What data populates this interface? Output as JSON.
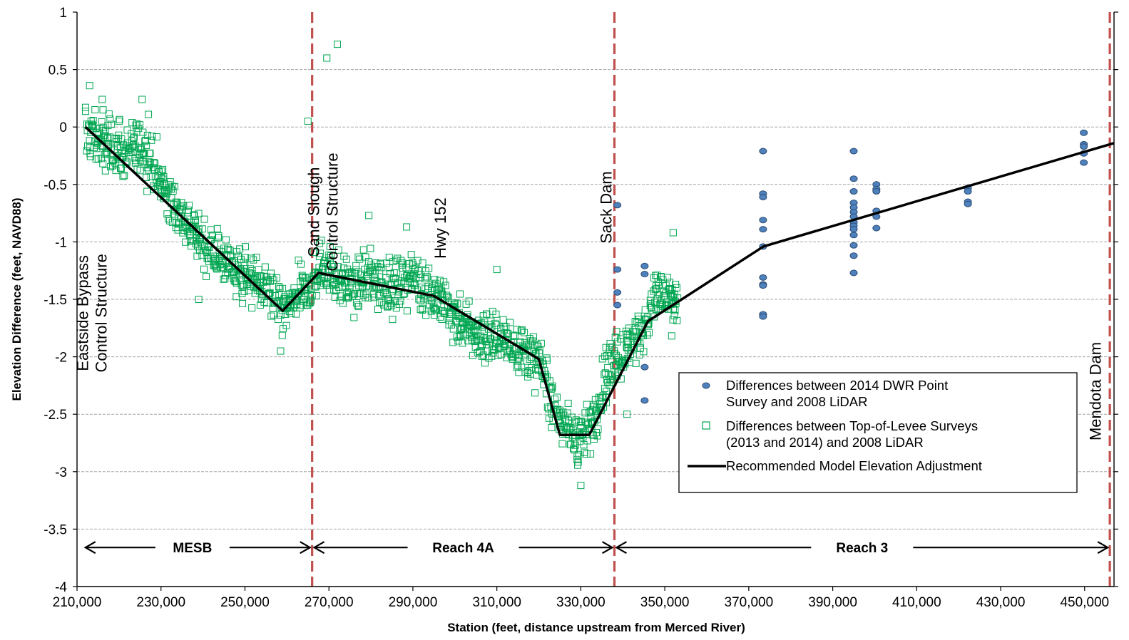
{
  "chart_data": {
    "type": "scatter",
    "xlabel": "Station (feet, distance upstream from Merced River)",
    "ylabel": "Elevation Difference (feet, NAVD88)",
    "xlim": [
      210000,
      457000
    ],
    "ylim": [
      -4,
      1
    ],
    "x_ticks": [
      210000,
      230000,
      250000,
      270000,
      290000,
      310000,
      330000,
      350000,
      370000,
      390000,
      410000,
      430000,
      450000
    ],
    "x_tick_labels": [
      "210,000",
      "230,000",
      "250,000",
      "270,000",
      "290,000",
      "310,000",
      "330,000",
      "350,000",
      "370,000",
      "390,000",
      "410,000",
      "430,000",
      "450,000"
    ],
    "y_ticks": [
      1,
      0.5,
      0,
      -0.5,
      -1,
      -1.5,
      -2,
      -2.5,
      -3,
      -3.5,
      -4
    ],
    "y_tick_labels": [
      "1",
      "0.5",
      "0",
      "-0.5",
      "-1",
      "-1.5",
      "-2",
      "-2.5",
      "-3",
      "-3.5",
      "-4"
    ],
    "grid": "horizontal",
    "legend_placement": "lower-right",
    "colors": {
      "levee": "#00a651",
      "dwr": "#4f81bd",
      "dwr_edge": "#2c4d75",
      "adjustment": "#000000",
      "boundary": "#c0504d",
      "grid": "#a6a6a6"
    },
    "legend": {
      "dwr_line1": "Differences between 2014 DWR Point",
      "dwr_line2": "Survey and 2008 LiDAR",
      "levee_line1": "Differences between Top-of-Levee Surveys",
      "levee_line2": "(2013 and 2014) and 2008 LiDAR",
      "adjustment": "Recommended Model Elevation Adjustment"
    },
    "boundaries": [
      266000,
      338000,
      456000
    ],
    "vertical_labels": [
      {
        "lines": [
          "Eastside Bypass",
          "Control Structure"
        ],
        "x": 213500,
        "y": -1.62
      },
      {
        "lines": [
          "Sand Slough",
          "Control Structure"
        ],
        "x": 268500,
        "y": -0.74
      },
      {
        "lines": [
          "Hwy 152"
        ],
        "x": 296500,
        "y": -0.88
      },
      {
        "lines": [
          "Sack Dam"
        ],
        "x": 336000,
        "y": -0.7
      },
      {
        "lines": [
          "Mendota Dam"
        ],
        "x": 452500,
        "y": -2.3
      }
    ],
    "reaches": [
      {
        "label": "MESB",
        "from": 212000,
        "to": 265500,
        "label_x": 237500
      },
      {
        "label": "Reach 4A",
        "from": 266500,
        "to": 337500,
        "label_x": 302000
      },
      {
        "label": "Reach 3",
        "from": 338500,
        "to": 455500,
        "label_x": 397000
      }
    ],
    "reach_arrow_y": -3.66,
    "series": [
      {
        "name": "Recommended Model Elevation Adjustment",
        "type": "line",
        "x": [
          212000,
          259000,
          267500,
          295000,
          320000,
          325000,
          332000,
          346000,
          373500,
          457000
        ],
        "y": [
          0.0,
          -1.6,
          -1.27,
          -1.47,
          -2.02,
          -2.68,
          -2.68,
          -1.69,
          -1.04,
          -0.14
        ]
      },
      {
        "name": "Differences between 2014 DWR Point Survey and 2008 LiDAR",
        "type": "scatter",
        "points": [
          [
            338700,
            -0.68
          ],
          [
            338700,
            -1.24
          ],
          [
            338700,
            -1.44
          ],
          [
            338700,
            -1.55
          ],
          [
            345200,
            -1.21
          ],
          [
            345200,
            -1.28
          ],
          [
            345200,
            -2.09
          ],
          [
            345200,
            -2.38
          ],
          [
            373400,
            -0.21
          ],
          [
            373400,
            -0.58
          ],
          [
            373400,
            -0.61
          ],
          [
            373400,
            -0.81
          ],
          [
            373400,
            -0.89
          ],
          [
            373400,
            -1.04
          ],
          [
            373400,
            -1.31
          ],
          [
            373400,
            -1.37
          ],
          [
            373400,
            -1.38
          ],
          [
            373400,
            -1.63
          ],
          [
            373400,
            -1.65
          ],
          [
            395000,
            -0.21
          ],
          [
            395000,
            -0.45
          ],
          [
            395000,
            -0.56
          ],
          [
            395000,
            -0.66
          ],
          [
            395000,
            -0.7
          ],
          [
            395000,
            -0.74
          ],
          [
            395000,
            -0.78
          ],
          [
            395000,
            -0.83
          ],
          [
            395000,
            -0.86
          ],
          [
            395000,
            -0.89
          ],
          [
            395000,
            -0.94
          ],
          [
            395000,
            -1.03
          ],
          [
            395000,
            -1.12
          ],
          [
            395000,
            -1.27
          ],
          [
            400400,
            -0.5
          ],
          [
            400400,
            -0.54
          ],
          [
            400400,
            -0.56
          ],
          [
            400400,
            -0.73
          ],
          [
            400400,
            -0.78
          ],
          [
            400400,
            -0.88
          ],
          [
            422200,
            -0.53
          ],
          [
            422200,
            -0.56
          ],
          [
            422200,
            -0.65
          ],
          [
            422200,
            -0.67
          ],
          [
            449800,
            -0.05
          ],
          [
            449800,
            -0.15
          ],
          [
            449800,
            -0.17
          ],
          [
            449800,
            -0.23
          ],
          [
            449800,
            -0.31
          ]
        ]
      },
      {
        "name": "Differences between Top-of-Levee Surveys (2013 and 2014) and 2008 LiDAR",
        "type": "scatter-band",
        "trend_x": [
          212000,
          214000,
          218000,
          222000,
          226000,
          230000,
          235000,
          240000,
          245000,
          250000,
          255000,
          259000,
          262000,
          266000,
          268000,
          272000,
          276000,
          280000,
          285000,
          290000,
          295000,
          300000,
          305000,
          310000,
          315000,
          320000,
          323000,
          326000,
          329000,
          332000,
          335000,
          338000,
          341000,
          344000,
          346000,
          348000,
          350000,
          353000
        ],
        "trend_y": [
          -0.05,
          -0.1,
          -0.15,
          -0.25,
          -0.15,
          -0.5,
          -0.8,
          -1.0,
          -1.15,
          -1.3,
          -1.45,
          -1.6,
          -1.5,
          -1.4,
          -1.2,
          -1.3,
          -1.4,
          -1.3,
          -1.4,
          -1.3,
          -1.45,
          -1.65,
          -1.8,
          -1.85,
          -1.9,
          -2.05,
          -2.35,
          -2.6,
          -2.7,
          -2.65,
          -2.3,
          -2.0,
          -1.95,
          -1.8,
          -1.65,
          -1.45,
          -1.5,
          -1.55
        ],
        "spread": 0.22,
        "outliers": [
          [
            213000,
            0.36
          ],
          [
            216000,
            0.24
          ],
          [
            225500,
            0.24
          ],
          [
            227000,
            0.11
          ],
          [
            220000,
            0.05
          ],
          [
            269500,
            0.6
          ],
          [
            272000,
            0.72
          ],
          [
            265000,
            0.05
          ],
          [
            279500,
            -0.77
          ],
          [
            288500,
            -0.87
          ],
          [
            310000,
            -1.24
          ],
          [
            318000,
            -2.15
          ],
          [
            330000,
            -3.12
          ],
          [
            336000,
            -1.92
          ],
          [
            352000,
            -0.92
          ],
          [
            338500,
            -1.78
          ],
          [
            341000,
            -2.5
          ],
          [
            239000,
            -1.5
          ],
          [
            258500,
            -1.95
          ]
        ]
      }
    ]
  }
}
